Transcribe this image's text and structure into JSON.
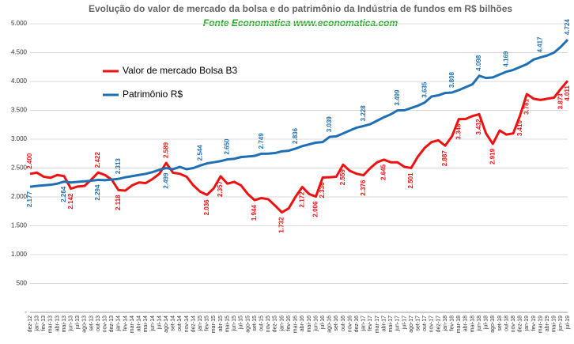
{
  "chart_data": {
    "type": "line",
    "title": "Evolução do valor de mercado da bolsa e do patrimônio da Indústria de fundos em R$ bilhões",
    "subtitle": "Fonte Economatica www.economatica.com",
    "categories": [
      "dez-12",
      "jan-13",
      "fev-13",
      "mar-13",
      "abr-13",
      "mai-13",
      "jun-13",
      "jul-13",
      "ago-13",
      "set-13",
      "out-13",
      "nov-13",
      "dez-13",
      "jan-14",
      "fev-14",
      "mar-14",
      "abr-14",
      "mai-14",
      "jun-14",
      "jul-14",
      "ago-14",
      "set-14",
      "out-14",
      "nov-14",
      "dez-14",
      "jan-15",
      "fev-15",
      "mar-15",
      "abr-15",
      "mai-15",
      "jun-15",
      "jul-15",
      "ago-15",
      "set-15",
      "out-15",
      "nov-15",
      "dez-15",
      "jan-16",
      "fev-16",
      "mar-16",
      "abr-16",
      "mai-16",
      "jun-16",
      "jul-16",
      "ago-16",
      "set-16",
      "out-16",
      "nov-16",
      "dez-16",
      "jan-17",
      "fev-17",
      "mar-17",
      "abr-17",
      "mai-17",
      "jun-17",
      "jul-17",
      "ago-17",
      "set-17",
      "out-17",
      "nov-17",
      "dez-17",
      "jan-18",
      "fev-18",
      "mar-18",
      "abr-18",
      "mai-18",
      "jun-18",
      "jul-18",
      "ago-18",
      "set-18",
      "out-18",
      "nov-18",
      "dez-18",
      "jan-19",
      "fev-19",
      "mar-19",
      "abr-19",
      "mai-19",
      "jun-19",
      "jul-19"
    ],
    "series": [
      {
        "name": "Valor de mercado Bolsa B3",
        "color": "#ee1111",
        "values": [
          2400,
          2420,
          2350,
          2330,
          2380,
          2360,
          2142,
          2180,
          2190,
          2300,
          2422,
          2380,
          2300,
          2118,
          2110,
          2200,
          2250,
          2240,
          2310,
          2400,
          2589,
          2420,
          2400,
          2350,
          2200,
          2090,
          2036,
          2150,
          2357,
          2230,
          2260,
          2200,
          2050,
          1944,
          1980,
          1960,
          1850,
          1732,
          1800,
          2000,
          2172,
          2050,
          2006,
          2336,
          2340,
          2350,
          2559,
          2450,
          2400,
          2376,
          2500,
          2600,
          2645,
          2600,
          2600,
          2520,
          2501,
          2700,
          2850,
          2950,
          2980,
          2887,
          3050,
          3348,
          3350,
          3400,
          3432,
          3100,
          2919,
          3150,
          3080,
          3100,
          3410,
          3781,
          3700,
          3680,
          3700,
          3720,
          3873,
          4011
        ],
        "value_labels": [
          "2.400",
          null,
          null,
          null,
          null,
          null,
          "2.142",
          null,
          null,
          null,
          "2.422",
          null,
          null,
          "2.118",
          null,
          null,
          null,
          null,
          null,
          null,
          "2.589",
          null,
          null,
          null,
          null,
          null,
          "2.036",
          null,
          "2.357",
          null,
          null,
          null,
          null,
          "1.944",
          null,
          null,
          null,
          "1.732",
          null,
          null,
          "2.172",
          null,
          "2.006",
          "2.336",
          null,
          null,
          "2.559",
          null,
          null,
          "2.376",
          null,
          null,
          "2.645",
          null,
          null,
          null,
          "2.501",
          null,
          null,
          null,
          null,
          "2.887",
          null,
          "3.348",
          null,
          null,
          "3.432",
          null,
          "2.919",
          null,
          null,
          null,
          "3.410",
          "3.781",
          null,
          null,
          null,
          null,
          "3.873",
          "4.011"
        ]
      },
      {
        "name": "Patrimônio R$",
        "color": "#1f6fb5",
        "values": [
          2177,
          2190,
          2200,
          2210,
          2230,
          2264,
          2250,
          2260,
          2270,
          2280,
          2294,
          2290,
          2300,
          2313,
          2340,
          2360,
          2380,
          2400,
          2430,
          2470,
          2499,
          2480,
          2520,
          2480,
          2500,
          2544,
          2580,
          2600,
          2620,
          2650,
          2660,
          2690,
          2700,
          2710,
          2749,
          2750,
          2760,
          2790,
          2800,
          2836,
          2880,
          2910,
          2940,
          2950,
          3039,
          3050,
          3100,
          3150,
          3200,
          3228,
          3260,
          3320,
          3380,
          3430,
          3499,
          3500,
          3540,
          3580,
          3635,
          3740,
          3760,
          3800,
          3808,
          3850,
          3900,
          3950,
          4098,
          4060,
          4070,
          4120,
          4169,
          4200,
          4250,
          4300,
          4380,
          4417,
          4450,
          4500,
          4600,
          4724
        ],
        "value_labels": [
          "2.177",
          null,
          null,
          null,
          null,
          "2.264",
          null,
          null,
          null,
          null,
          "2.294",
          null,
          null,
          "2.313",
          null,
          null,
          null,
          null,
          null,
          null,
          "2.499",
          null,
          null,
          null,
          null,
          "2.544",
          null,
          null,
          null,
          "2.650",
          null,
          null,
          null,
          null,
          "2.749",
          null,
          null,
          null,
          null,
          "2.836",
          null,
          null,
          null,
          null,
          "3.039",
          null,
          null,
          null,
          null,
          "3.228",
          null,
          null,
          null,
          null,
          "3.499",
          null,
          null,
          null,
          "3.635",
          null,
          null,
          null,
          "3.808",
          null,
          null,
          null,
          "4.098",
          null,
          null,
          null,
          "4.169",
          null,
          null,
          null,
          null,
          "4.417",
          null,
          null,
          null,
          "4.724"
        ]
      }
    ],
    "ylim": [
      0,
      5000
    ],
    "yticks": [
      {
        "value": 0,
        "label": "-"
      },
      500,
      {
        "value": 1000,
        "label": "1.000"
      },
      {
        "value": 1500,
        "label": "1.500"
      },
      {
        "value": 2000,
        "label": "2.000"
      },
      {
        "value": 2500,
        "label": "2.500"
      },
      {
        "value": 3000,
        "label": "3.000"
      },
      {
        "value": 3500,
        "label": "3.500"
      },
      {
        "value": 4000,
        "label": "4.000"
      },
      {
        "value": 4500,
        "label": "4.500"
      },
      {
        "value": 5000,
        "label": "5.000"
      }
    ],
    "grid": true
  }
}
